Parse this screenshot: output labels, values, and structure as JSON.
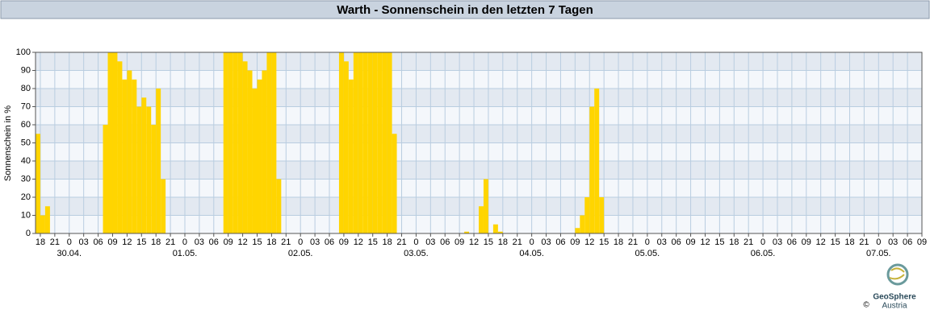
{
  "chart_data": {
    "type": "bar",
    "title": "Warth - Sonnenschein in den letzten 7 Tagen",
    "y_label": "Sonnenschein in %",
    "x": [
      -7,
      -6,
      -5,
      7,
      8,
      9,
      10,
      11,
      12,
      13,
      14,
      15,
      16,
      17,
      18,
      19,
      32,
      33,
      34,
      35,
      36,
      37,
      38,
      39,
      40,
      41,
      42,
      43,
      56,
      57,
      58,
      59,
      60,
      61,
      62,
      63,
      64,
      65,
      66,
      67,
      82,
      85,
      86,
      88,
      89,
      105,
      106,
      107,
      108,
      109,
      110
    ],
    "values": [
      55,
      10,
      15,
      60,
      100,
      100,
      95,
      85,
      90,
      85,
      70,
      75,
      70,
      60,
      80,
      30,
      100,
      100,
      100,
      100,
      95,
      90,
      80,
      85,
      90,
      100,
      100,
      30,
      100,
      95,
      85,
      100,
      100,
      100,
      100,
      100,
      100,
      100,
      100,
      55,
      1,
      15,
      30,
      5,
      1,
      3,
      10,
      20,
      70,
      80,
      20
    ],
    "color": "#ffd500",
    "xlim": [
      -7,
      177
    ],
    "ylim": [
      0,
      100
    ],
    "yticks": [
      0,
      10,
      20,
      30,
      40,
      50,
      60,
      70,
      80,
      90,
      100
    ],
    "xticks": [
      {
        "value": -6,
        "label": "18"
      },
      {
        "value": -3,
        "label": "21"
      },
      {
        "value": 0,
        "label": "0"
      },
      {
        "value": 3,
        "label": "03"
      },
      {
        "value": 6,
        "label": "06"
      },
      {
        "value": 9,
        "label": "09"
      },
      {
        "value": 12,
        "label": "12"
      },
      {
        "value": 15,
        "label": "15"
      },
      {
        "value": 18,
        "label": "18"
      },
      {
        "value": 21,
        "label": "21"
      },
      {
        "value": 24,
        "label": "0"
      },
      {
        "value": 27,
        "label": "03"
      },
      {
        "value": 30,
        "label": "06"
      },
      {
        "value": 33,
        "label": "09"
      },
      {
        "value": 36,
        "label": "12"
      },
      {
        "value": 39,
        "label": "15"
      },
      {
        "value": 42,
        "label": "18"
      },
      {
        "value": 45,
        "label": "21"
      },
      {
        "value": 48,
        "label": "0"
      },
      {
        "value": 51,
        "label": "03"
      },
      {
        "value": 54,
        "label": "06"
      },
      {
        "value": 57,
        "label": "09"
      },
      {
        "value": 60,
        "label": "12"
      },
      {
        "value": 63,
        "label": "15"
      },
      {
        "value": 66,
        "label": "18"
      },
      {
        "value": 69,
        "label": "21"
      },
      {
        "value": 72,
        "label": "0"
      },
      {
        "value": 75,
        "label": "03"
      },
      {
        "value": 78,
        "label": "06"
      },
      {
        "value": 81,
        "label": "09"
      },
      {
        "value": 84,
        "label": "12"
      },
      {
        "value": 87,
        "label": "15"
      },
      {
        "value": 90,
        "label": "18"
      },
      {
        "value": 93,
        "label": "21"
      },
      {
        "value": 96,
        "label": "0"
      },
      {
        "value": 99,
        "label": "03"
      },
      {
        "value": 102,
        "label": "06"
      },
      {
        "value": 105,
        "label": "09"
      },
      {
        "value": 108,
        "label": "12"
      },
      {
        "value": 111,
        "label": "15"
      },
      {
        "value": 114,
        "label": "18"
      },
      {
        "value": 117,
        "label": "21"
      },
      {
        "value": 120,
        "label": "0"
      },
      {
        "value": 123,
        "label": "03"
      },
      {
        "value": 126,
        "label": "06"
      },
      {
        "value": 129,
        "label": "09"
      },
      {
        "value": 132,
        "label": "12"
      },
      {
        "value": 135,
        "label": "15"
      },
      {
        "value": 138,
        "label": "18"
      },
      {
        "value": 141,
        "label": "21"
      },
      {
        "value": 144,
        "label": "0"
      },
      {
        "value": 147,
        "label": "03"
      },
      {
        "value": 150,
        "label": "06"
      },
      {
        "value": 153,
        "label": "09"
      },
      {
        "value": 156,
        "label": "12"
      },
      {
        "value": 159,
        "label": "15"
      },
      {
        "value": 162,
        "label": "18"
      },
      {
        "value": 165,
        "label": "21"
      },
      {
        "value": 168,
        "label": "0"
      },
      {
        "value": 171,
        "label": "03"
      },
      {
        "value": 174,
        "label": "06"
      },
      {
        "value": 177,
        "label": "09"
      }
    ],
    "x_date_labels": [
      {
        "value": 0,
        "label": "30.04."
      },
      {
        "value": 24,
        "label": "01.05."
      },
      {
        "value": 48,
        "label": "02.05."
      },
      {
        "value": 72,
        "label": "03.05."
      },
      {
        "value": 96,
        "label": "04.05."
      },
      {
        "value": 120,
        "label": "05.05."
      },
      {
        "value": 144,
        "label": "06.05."
      },
      {
        "value": 168,
        "label": "07.05."
      }
    ],
    "grid": true,
    "logo": {
      "name": "GeoSphere",
      "sub": "Austria",
      "copyright": "©"
    }
  }
}
